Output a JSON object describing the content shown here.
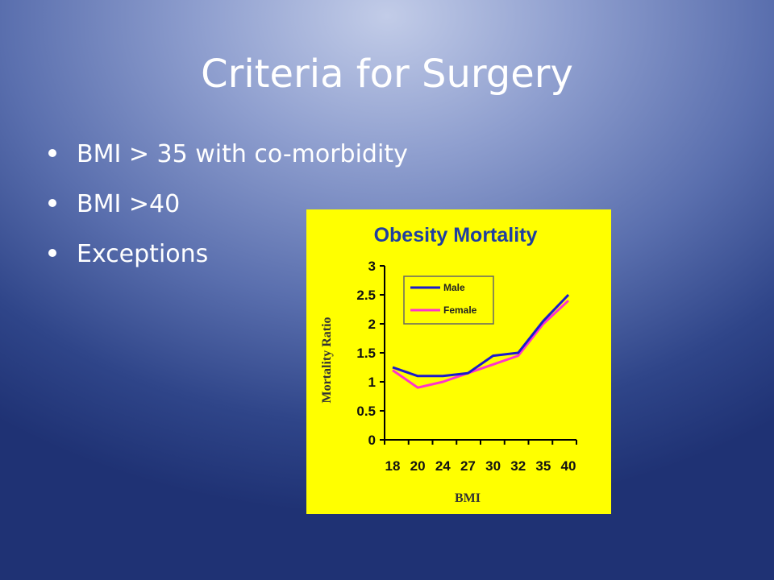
{
  "slide": {
    "title": "Criteria for Surgery",
    "bullets": [
      "BMI > 35 with co-morbidity",
      "BMI >40",
      "Exceptions"
    ]
  },
  "chart_data": {
    "type": "line",
    "title": "Obesity Mortality",
    "xlabel": "BMI",
    "ylabel": "Mortality Ratio",
    "categories": [
      "18",
      "20",
      "24",
      "27",
      "30",
      "32",
      "35",
      "40"
    ],
    "ylim": [
      0,
      3
    ],
    "yticks": [
      0,
      0.5,
      1,
      1.5,
      2,
      2.5,
      3
    ],
    "legend": "top-left",
    "grid": false,
    "background": "#ffff00",
    "series": [
      {
        "name": "Male",
        "color": "#1a1acc",
        "values": [
          1.25,
          1.1,
          1.1,
          1.15,
          1.45,
          1.5,
          2.05,
          2.5
        ]
      },
      {
        "name": "Female",
        "color": "#ff33cc",
        "values": [
          1.2,
          0.9,
          1.0,
          1.15,
          1.3,
          1.45,
          2.0,
          2.4
        ]
      }
    ]
  }
}
